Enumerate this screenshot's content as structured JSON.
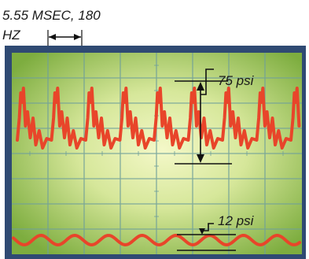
{
  "caption": {
    "line1": "5.55 MSEC, 180",
    "line2": "HZ"
  },
  "annotations": {
    "high_pressure": "75 psi",
    "low_pressure": "12 psi"
  },
  "colors": {
    "frame": "#2f4a73",
    "screen_center": "#f2f7c4",
    "screen_mid": "#c8e08a",
    "screen_edge": "#7dad3f",
    "grid": "#6f9f9a",
    "trace": "#e8452a",
    "marker": "#111111"
  }
}
